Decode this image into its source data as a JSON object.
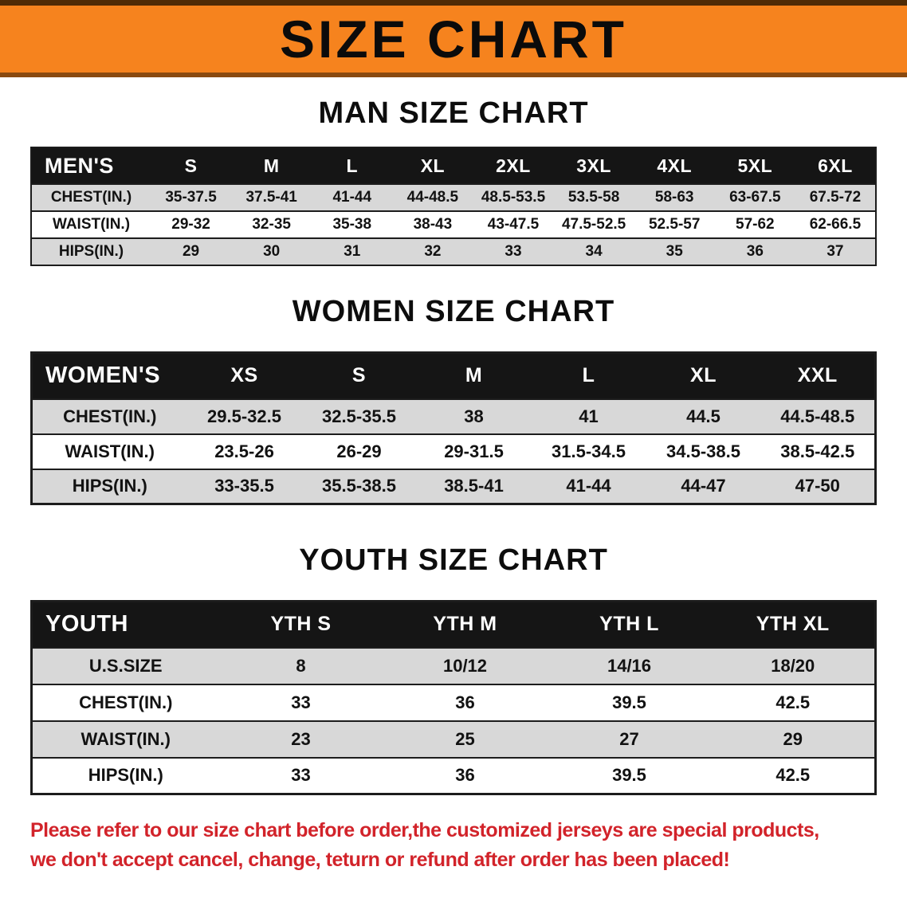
{
  "banner": {
    "title": "SIZE CHART"
  },
  "sections": [
    {
      "id": "men",
      "heading": "MAN SIZE CHART",
      "table": {
        "header": [
          "MEN'S",
          "S",
          "M",
          "L",
          "XL",
          "2XL",
          "3XL",
          "4XL",
          "5XL",
          "6XL"
        ],
        "rows": [
          [
            "CHEST(IN.)",
            "35-37.5",
            "37.5-41",
            "41-44",
            "44-48.5",
            "48.5-53.5",
            "53.5-58",
            "58-63",
            "63-67.5",
            "67.5-72"
          ],
          [
            "WAIST(IN.)",
            "29-32",
            "32-35",
            "35-38",
            "38-43",
            "43-47.5",
            "47.5-52.5",
            "52.5-57",
            "57-62",
            "62-66.5"
          ],
          [
            "HIPS(IN.)",
            "29",
            "30",
            "31",
            "32",
            "33",
            "34",
            "35",
            "36",
            "37"
          ]
        ]
      }
    },
    {
      "id": "women",
      "heading": "WOMEN SIZE CHART",
      "table": {
        "header": [
          "WOMEN'S",
          "XS",
          "S",
          "M",
          "L",
          "XL",
          "XXL"
        ],
        "rows": [
          [
            "CHEST(IN.)",
            "29.5-32.5",
            "32.5-35.5",
            "38",
            "41",
            "44.5",
            "44.5-48.5"
          ],
          [
            "WAIST(IN.)",
            "23.5-26",
            "26-29",
            "29-31.5",
            "31.5-34.5",
            "34.5-38.5",
            "38.5-42.5"
          ],
          [
            "HIPS(IN.)",
            "33-35.5",
            "35.5-38.5",
            "38.5-41",
            "41-44",
            "44-47",
            "47-50"
          ]
        ]
      }
    },
    {
      "id": "youth",
      "heading": "YOUTH SIZE CHART",
      "table": {
        "header": [
          "YOUTH",
          "YTH S",
          "YTH M",
          "YTH L",
          "YTH XL"
        ],
        "rows": [
          [
            "U.S.SIZE",
            "8",
            "10/12",
            "14/16",
            "18/20"
          ],
          [
            "CHEST(IN.)",
            "33",
            "36",
            "39.5",
            "42.5"
          ],
          [
            "WAIST(IN.)",
            "23",
            "25",
            "27",
            "29"
          ],
          [
            "HIPS(IN.)",
            "33",
            "36",
            "39.5",
            "42.5"
          ]
        ]
      }
    }
  ],
  "footer": {
    "line1": "Please refer to our size chart before order,the customized jerseys are special products,",
    "line2": "we don't accept cancel, change, teturn or refund after order has been placed!"
  },
  "colors": {
    "banner_orange": "#f6831e",
    "banner_border_dark": "#4f2b06",
    "banner_border_mid": "#8a4a10",
    "header_black": "#151515",
    "row_gray": "#d8d8d8",
    "note_red": "#d2232a"
  }
}
